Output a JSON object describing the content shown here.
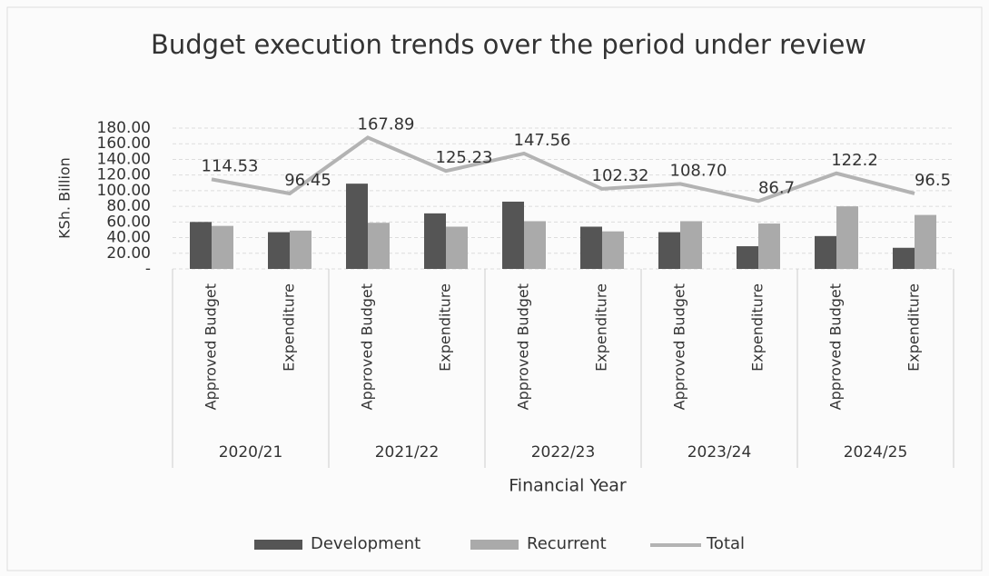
{
  "chart_data": {
    "type": "bar_line",
    "title": "Budget execution trends over the period under review",
    "y_label": "KSh. Billion",
    "x_label": "Financial Year",
    "categories": [
      "Approved Budget",
      "Expenditure",
      "Approved Budget",
      "Expenditure",
      "Approved Budget",
      "Expenditure",
      "Approved Budget",
      "Expenditure",
      "Approved Budget",
      "Expenditure"
    ],
    "groups": [
      "2020/21",
      "2021/22",
      "2022/23",
      "2023/24",
      "2024/25"
    ],
    "series": [
      {
        "name": "Development",
        "type": "bar",
        "color": "#555555",
        "values": [
          60,
          47,
          109,
          71,
          86,
          54,
          47,
          29,
          42,
          27
        ]
      },
      {
        "name": "Recurrent",
        "type": "bar",
        "color": "#aaaaaa",
        "values": [
          55,
          49,
          59,
          54,
          61,
          48,
          61,
          58,
          80,
          69
        ]
      },
      {
        "name": "Total",
        "type": "line",
        "color": "#b3b3b3",
        "values": [
          114.53,
          96.45,
          167.89,
          125.23,
          147.56,
          102.32,
          108.7,
          86.7,
          122.2,
          96.5
        ],
        "value_labels": [
          "114.53",
          "96.45",
          "167.89",
          "125.23",
          "147.56",
          "102.32",
          "108.70",
          "86.7",
          "122.2",
          "96.5"
        ]
      }
    ],
    "ylim": [
      0,
      180
    ],
    "yticks": [
      {
        "value": 0,
        "label": "-"
      },
      {
        "value": 20,
        "label": "20.00"
      },
      {
        "value": 40,
        "label": "40.00"
      },
      {
        "value": 60,
        "label": "60.00"
      },
      {
        "value": 80,
        "label": "80.00"
      },
      {
        "value": 100,
        "label": "100.00"
      },
      {
        "value": 120,
        "label": "120.00"
      },
      {
        "value": 140,
        "label": "140.00"
      },
      {
        "value": 160,
        "label": "160.00"
      },
      {
        "value": 180,
        "label": "180.00"
      }
    ],
    "grid": true,
    "legend": "bottom"
  }
}
